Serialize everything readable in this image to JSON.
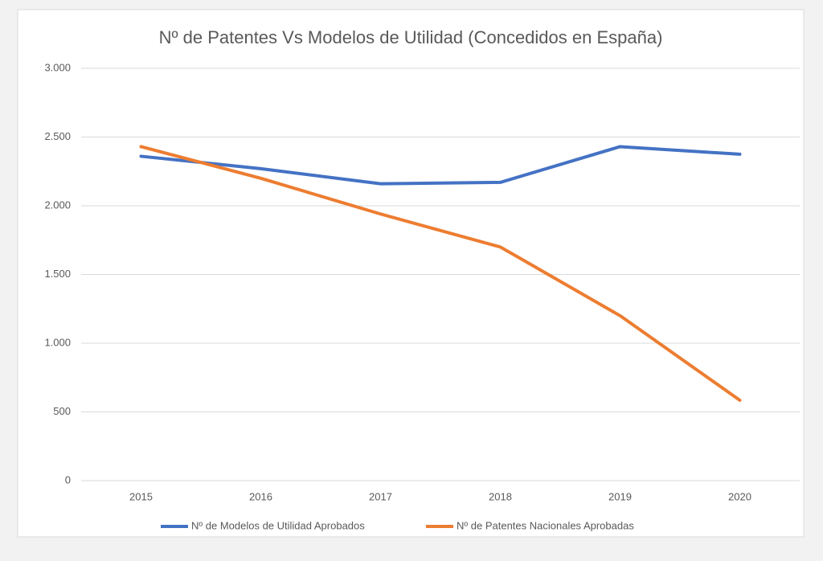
{
  "chart_data": {
    "type": "line",
    "title": "Nº de Patentes Vs Modelos de Utilidad (Concedidos en España)",
    "categories": [
      "2015",
      "2016",
      "2017",
      "2018",
      "2019",
      "2020"
    ],
    "series": [
      {
        "name": "Nº de Modelos de Utilidad Aprobados",
        "color": "#4472c4",
        "values": [
          2360,
          2270,
          2160,
          2170,
          2430,
          2375
        ]
      },
      {
        "name": "Nº de Patentes Nacionales Aprobadas",
        "color": "#ed7d31",
        "values": [
          2430,
          2200,
          1940,
          1700,
          1200,
          585
        ]
      }
    ],
    "ylim": [
      0,
      3000
    ],
    "yticks": [
      0,
      {
        "value": 500,
        "label": "500"
      },
      {
        "value": 1000,
        "label": "1.000"
      },
      {
        "value": 1500,
        "label": "1.500"
      },
      {
        "value": 2000,
        "label": "2.000"
      },
      {
        "value": 2500,
        "label": "2.500"
      },
      {
        "value": 3000,
        "label": "3.000"
      }
    ],
    "grid": true,
    "legend": "bottom"
  }
}
